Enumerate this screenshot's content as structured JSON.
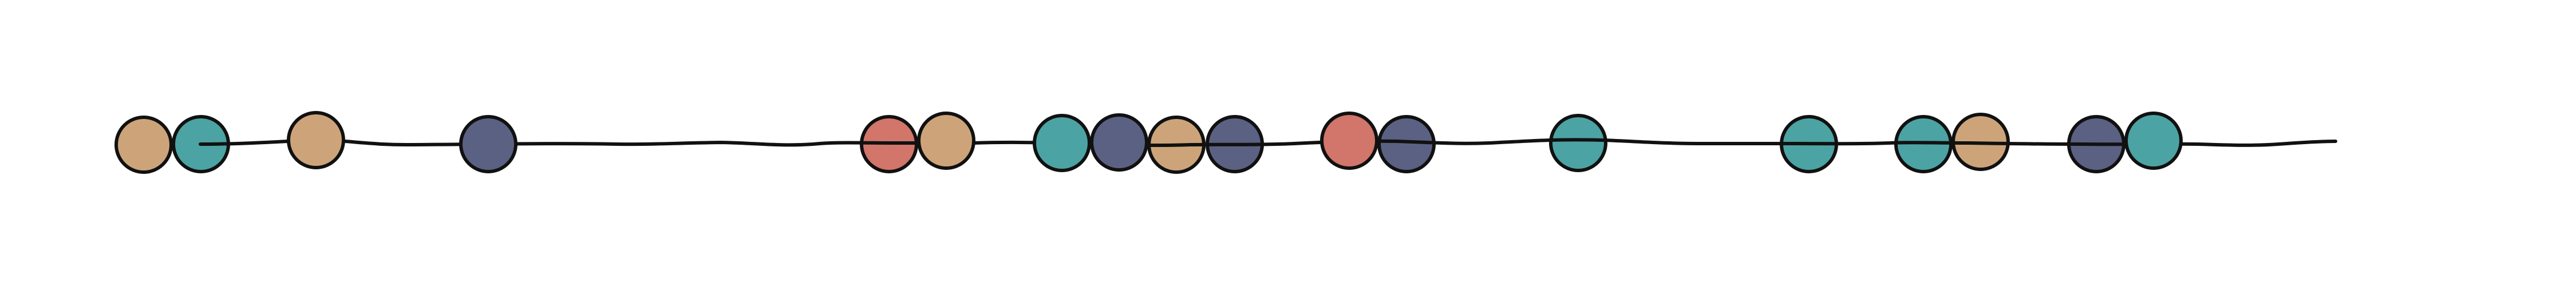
{
  "colors": {
    "tan": "#cda47a",
    "teal": "#4ca3a3",
    "slate": "#5b6183",
    "coral": "#d2756a",
    "ink": "#111111",
    "background": "#ffffff"
  },
  "beads": [
    {
      "color": "tan",
      "string_over": false
    },
    {
      "color": "teal",
      "string_over": true
    },
    {
      "color": "tan",
      "string_over": false
    },
    {
      "color": "slate",
      "string_over": false
    },
    {
      "color": "coral",
      "string_over": true
    },
    {
      "color": "tan",
      "string_over": false
    },
    {
      "color": "teal",
      "string_over": false
    },
    {
      "color": "slate",
      "string_over": false
    },
    {
      "color": "tan",
      "string_over": true
    },
    {
      "color": "slate",
      "string_over": true
    },
    {
      "color": "coral",
      "string_over": false
    },
    {
      "color": "slate",
      "string_over": true
    },
    {
      "color": "teal",
      "string_over": true
    },
    {
      "color": "teal",
      "string_over": true
    },
    {
      "color": "teal",
      "string_over": true
    },
    {
      "color": "tan",
      "string_over": true
    },
    {
      "color": "slate",
      "string_over": true
    },
    {
      "color": "teal",
      "string_over": false
    }
  ]
}
